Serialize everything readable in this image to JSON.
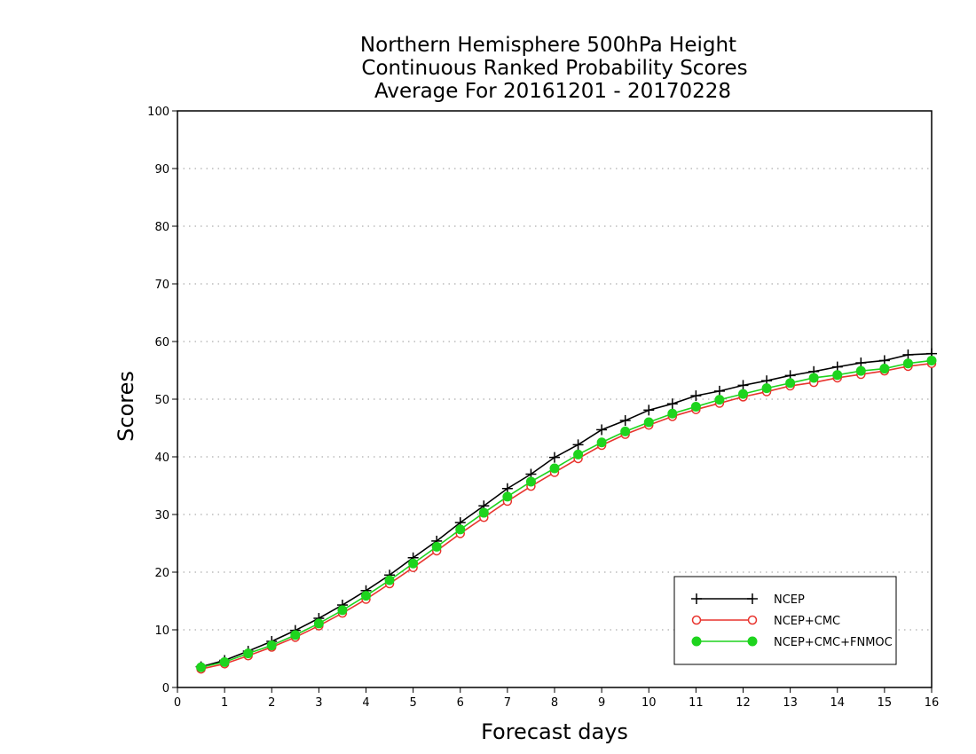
{
  "chart_data": {
    "type": "line",
    "title_lines": [
      "Northern Hemisphere 500hPa Height",
      "Continuous Ranked Probability Scores",
      "Average For 20161201 - 20170228"
    ],
    "xlabel": "Forecast days",
    "ylabel": "Scores",
    "xlim": [
      0,
      16
    ],
    "ylim": [
      0,
      100
    ],
    "xticks": [
      "0",
      "1",
      "2",
      "3",
      "4",
      "5",
      "6",
      "7",
      "8",
      "9",
      "10",
      "11",
      "12",
      "13",
      "14",
      "15",
      "16"
    ],
    "yticks": [
      "0",
      "10",
      "20",
      "30",
      "40",
      "50",
      "60",
      "70",
      "80",
      "90",
      "100"
    ],
    "grid": "horizontal dotted",
    "legend_position": "bottom-right",
    "x": [
      0.5,
      1,
      1.5,
      2,
      2.5,
      3,
      3.5,
      4,
      4.5,
      5,
      5.5,
      6,
      6.5,
      7,
      7.5,
      8,
      8.5,
      9,
      9.5,
      10,
      10.5,
      11,
      11.5,
      12,
      12.5,
      13,
      13.5,
      14,
      14.5,
      15,
      15.5,
      16
    ],
    "series": [
      {
        "name": "NCEP",
        "color": "#000000",
        "marker": "plus",
        "values": [
          3.6,
          4.7,
          6.3,
          8.0,
          9.9,
          12.0,
          14.3,
          16.8,
          19.5,
          22.5,
          25.4,
          28.6,
          31.5,
          34.5,
          37.0,
          39.9,
          42.1,
          44.7,
          46.3,
          48.1,
          49.2,
          50.6,
          51.4,
          52.4,
          53.2,
          54.1,
          54.8,
          55.6,
          56.3,
          56.7,
          57.7,
          57.9
        ]
      },
      {
        "name": "NCEP+CMC",
        "color": "#e8342e",
        "marker": "open-circle",
        "values": [
          3.2,
          4.1,
          5.5,
          7.0,
          8.7,
          10.7,
          12.9,
          15.3,
          18.0,
          20.8,
          23.7,
          26.7,
          29.5,
          32.3,
          34.9,
          37.3,
          39.7,
          42.0,
          43.9,
          45.5,
          47.0,
          48.2,
          49.3,
          50.4,
          51.3,
          52.3,
          52.9,
          53.7,
          54.3,
          54.9,
          55.7,
          56.2
        ]
      },
      {
        "name": "NCEP+CMC+FNMOC",
        "color": "#1ed41e",
        "marker": "filled-circle",
        "values": [
          3.5,
          4.4,
          5.9,
          7.3,
          9.1,
          11.1,
          13.4,
          15.9,
          18.6,
          21.5,
          24.4,
          27.4,
          30.3,
          33.1,
          35.7,
          38.0,
          40.4,
          42.5,
          44.4,
          46.0,
          47.5,
          48.7,
          49.9,
          50.9,
          51.9,
          52.8,
          53.7,
          54.2,
          54.9,
          55.3,
          56.2,
          56.7
        ]
      }
    ]
  }
}
